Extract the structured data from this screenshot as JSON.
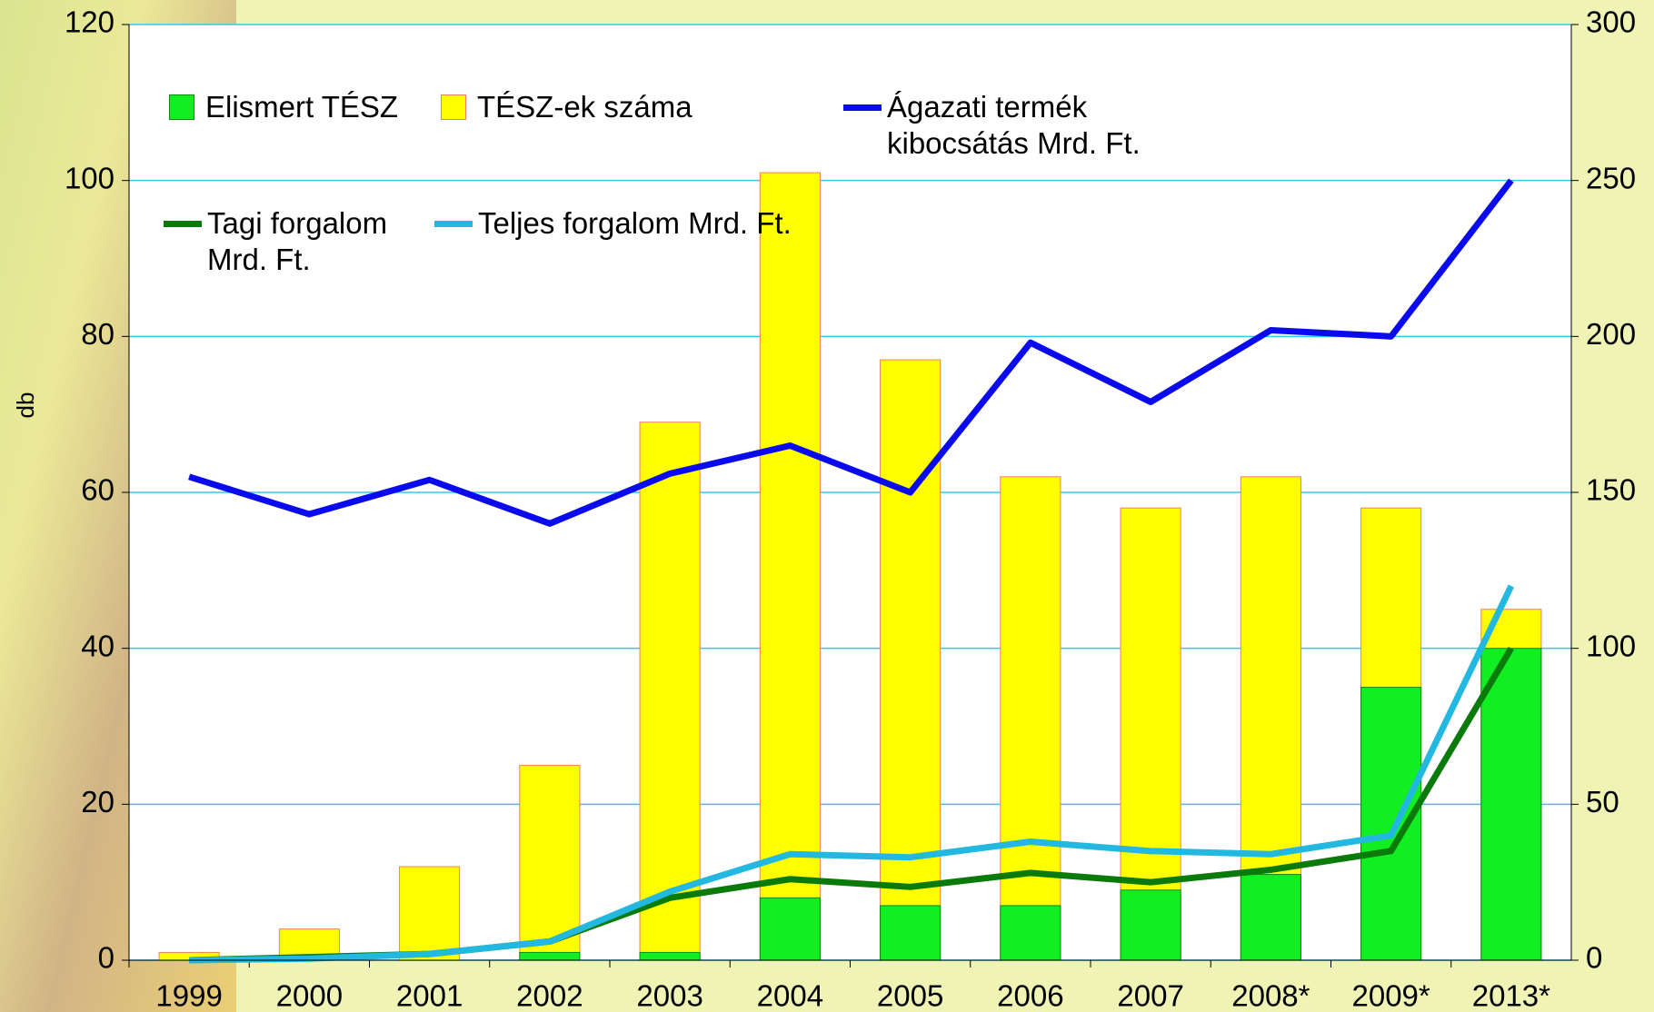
{
  "chart_data": {
    "type": "bar",
    "y_label": "db",
    "categories": [
      "1999",
      "2000",
      "2001",
      "2002",
      "2003",
      "2004",
      "2005",
      "2006",
      "2007",
      "2008*",
      "2009*",
      "2013*"
    ],
    "ylim": [
      0,
      120
    ],
    "yticks": [
      0,
      20,
      40,
      60,
      80,
      100,
      120
    ],
    "y2lim": [
      0,
      300
    ],
    "y2ticks": [
      0,
      50,
      100,
      150,
      200,
      250,
      300
    ],
    "grid": true,
    "series": [
      {
        "name": "TÉSZ-ek száma",
        "type": "bar",
        "color": "#ffff00",
        "values": [
          1,
          4,
          12,
          25,
          69,
          101,
          77,
          62,
          58,
          62,
          58,
          45
        ]
      },
      {
        "name": "Elismert TÉSZ",
        "type": "bar",
        "color": "#11ee22",
        "values": [
          0,
          0,
          0,
          1,
          1,
          8,
          7,
          7,
          9,
          11,
          35,
          40
        ]
      },
      {
        "name": "Ágazati termék kibocsátás Mrd. Ft.",
        "type": "line",
        "axis": "y2",
        "color": "#0a0aee",
        "values": [
          155,
          143,
          154,
          140,
          156,
          165,
          150,
          198,
          179,
          202,
          200,
          250
        ]
      },
      {
        "name": "Tagi forgalom Mrd. Ft.",
        "type": "line",
        "axis": "y2",
        "color": "#0a7a0a",
        "values": [
          0,
          1,
          2,
          6,
          20,
          26,
          23.5,
          28,
          25,
          29,
          35,
          100
        ]
      },
      {
        "name": "Teljes forgalom Mrd. Ft.",
        "type": "line",
        "axis": "y2",
        "color": "#22b8e0",
        "values": [
          0,
          0.5,
          2,
          6,
          22,
          34,
          33,
          38,
          35,
          34,
          40,
          120
        ]
      }
    ]
  }
}
